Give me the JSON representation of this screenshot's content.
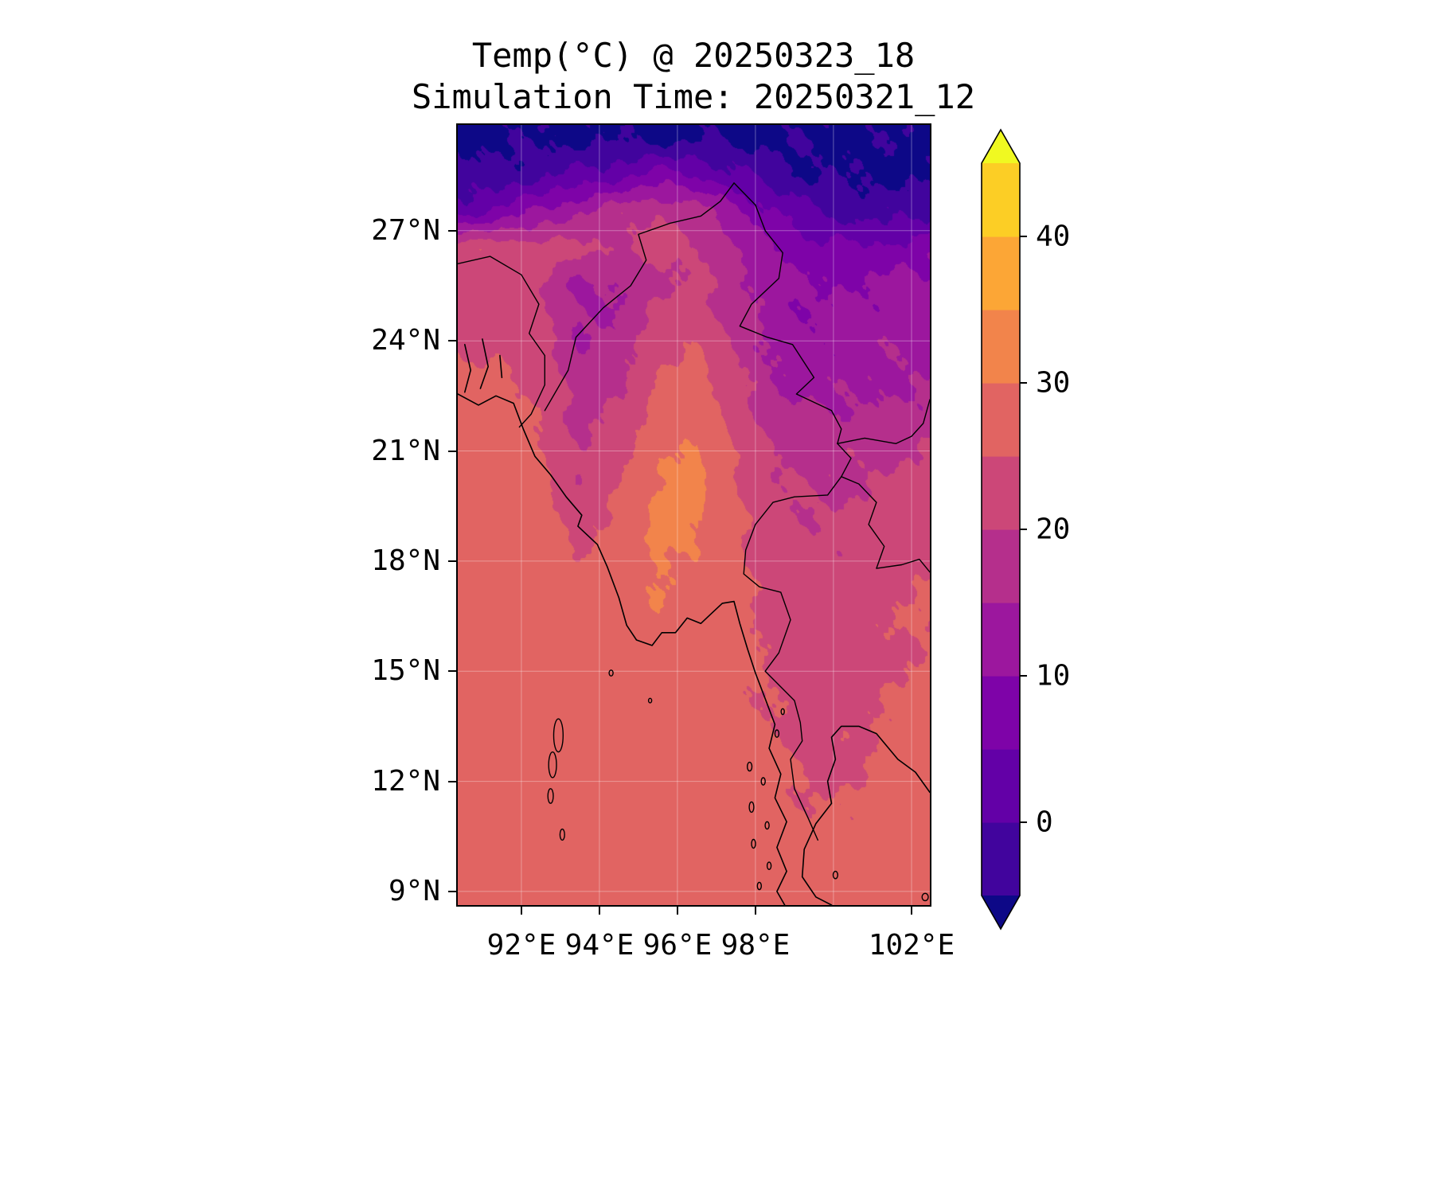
{
  "title": {
    "line1": "Temp(°C) @ 20250323_18",
    "line2": "Simulation Time: 20250321_12"
  },
  "axes": {
    "x_ticks": [
      {
        "lon": 92,
        "label": "92°E"
      },
      {
        "lon": 94,
        "label": "94°E"
      },
      {
        "lon": 96,
        "label": "96°E"
      },
      {
        "lon": 98,
        "label": "98°E"
      },
      {
        "lon": 102,
        "label": "102°E"
      }
    ],
    "y_ticks": [
      {
        "lat": 27,
        "label": "27°N"
      },
      {
        "lat": 24,
        "label": "24°N"
      },
      {
        "lat": 21,
        "label": "21°N"
      },
      {
        "lat": 18,
        "label": "18°N"
      },
      {
        "lat": 15,
        "label": "15°N"
      },
      {
        "lat": 12,
        "label": "12°N"
      },
      {
        "lat": 9,
        "label": "9°N"
      }
    ],
    "gridlines": {
      "lons": [
        92,
        94,
        96,
        98,
        100,
        102
      ],
      "lats": [
        9,
        12,
        15,
        18,
        21,
        24,
        27
      ]
    }
  },
  "colorbar": {
    "ticks": [
      {
        "value": 40,
        "label": "40"
      },
      {
        "value": 30,
        "label": "30"
      },
      {
        "value": 20,
        "label": "20"
      },
      {
        "value": 10,
        "label": "10"
      },
      {
        "value": 0,
        "label": "0"
      }
    ]
  },
  "chart_data": {
    "type": "heatmap",
    "title": "Temp(°C) @ 20250323_18",
    "subtitle": "Simulation Time: 20250321_12",
    "units": "°C",
    "extent": {
      "lon_min": 90.37,
      "lon_max": 102.47,
      "lat_min": 8.63,
      "lat_max": 29.88
    },
    "colormap": {
      "name": "plasma",
      "levels": [
        -5,
        0,
        5,
        10,
        15,
        20,
        25,
        30,
        35,
        40,
        45
      ],
      "colors": [
        "#41049d",
        "#6300a7",
        "#7e03a8",
        "#9c179e",
        "#b52f8c",
        "#cc4778",
        "#e16462",
        "#f2844b",
        "#fca636",
        "#fcce25"
      ],
      "under": "#0d0887",
      "over": "#f0f921"
    },
    "lon": [
      90.5,
      91.5,
      92.5,
      93.5,
      94.5,
      95.5,
      96.5,
      97.5,
      98.5,
      99.5,
      100.5,
      101.5,
      102.5
    ],
    "lat": [
      29.5,
      28.5,
      27.5,
      26.5,
      25.5,
      24.5,
      23.5,
      22.5,
      21.5,
      20.5,
      19.5,
      18.5,
      17.5,
      16.5,
      15.5,
      14.5,
      13.5,
      12.5,
      11.5,
      10.5,
      9.5,
      8.5
    ],
    "values": [
      [
        -6,
        -6,
        -6,
        -6,
        -6,
        -6,
        -6,
        -6,
        -6,
        -6,
        -6,
        -6,
        -6
      ],
      [
        -4,
        -3,
        -1,
        1,
        4,
        7,
        5,
        1,
        -3,
        -5,
        -6,
        -6,
        -6
      ],
      [
        3,
        7,
        11,
        15,
        18,
        20,
        18,
        12,
        5,
        0,
        -2,
        -2,
        -1
      ],
      [
        24,
        24,
        23,
        21,
        20,
        22,
        20,
        15,
        10,
        7,
        6,
        7,
        8
      ],
      [
        23,
        24,
        20,
        14,
        15,
        19,
        21,
        17,
        12,
        10,
        10,
        11,
        12
      ],
      [
        24,
        24,
        22,
        14,
        16,
        22,
        24,
        18,
        13,
        11,
        12,
        13,
        13
      ],
      [
        25,
        25,
        23,
        16,
        18,
        24,
        26,
        20,
        14,
        12,
        13,
        14,
        14
      ],
      [
        26,
        26,
        24,
        18,
        20,
        26,
        28,
        22,
        16,
        14,
        14,
        15,
        15
      ],
      [
        27,
        27,
        25,
        19,
        22,
        28,
        30,
        24,
        19,
        18,
        18,
        19,
        19
      ],
      [
        28,
        28,
        26,
        20,
        24,
        30,
        31,
        25,
        20,
        19,
        19,
        20,
        21
      ],
      [
        28,
        28,
        27,
        22,
        26,
        31,
        31,
        26,
        21,
        20,
        20,
        22,
        23
      ],
      [
        28,
        28,
        28,
        24,
        27,
        31,
        30,
        26,
        22,
        21,
        21,
        23,
        24
      ],
      [
        28,
        28,
        28,
        26,
        28,
        30,
        29,
        26,
        23,
        22,
        22,
        24,
        25
      ],
      [
        28,
        28,
        28,
        28,
        29,
        30,
        28,
        26,
        24,
        23,
        23,
        25,
        26
      ],
      [
        28,
        28,
        28,
        28,
        28,
        29,
        28,
        27,
        24,
        22,
        22,
        24,
        25
      ],
      [
        28,
        28,
        28,
        28,
        28,
        28,
        28,
        26,
        25,
        23,
        23,
        25,
        26
      ],
      [
        28,
        28,
        28,
        28,
        28,
        28,
        28,
        26,
        25,
        24,
        24,
        26,
        27
      ],
      [
        28,
        28,
        28,
        28,
        28,
        28,
        28,
        27,
        26,
        24,
        24,
        26,
        27
      ],
      [
        28,
        28,
        28,
        28,
        28,
        28,
        28,
        27,
        26,
        25,
        25,
        27,
        27
      ],
      [
        28,
        28,
        28,
        28,
        28,
        28,
        28,
        28,
        27,
        26,
        26,
        27,
        28
      ],
      [
        28,
        28,
        28,
        28,
        28,
        28,
        28,
        28,
        27,
        26,
        26,
        27,
        28
      ],
      [
        28,
        28,
        28,
        28,
        28,
        28,
        28,
        28,
        28,
        27,
        27,
        28,
        28
      ]
    ]
  },
  "map_overlays": {
    "coastlines": [
      [
        [
          90.37,
          22.55
        ],
        [
          90.9,
          22.25
        ],
        [
          91.35,
          22.5
        ],
        [
          91.8,
          22.3
        ],
        [
          92.05,
          21.6
        ],
        [
          92.35,
          20.85
        ],
        [
          92.75,
          20.35
        ],
        [
          93.15,
          19.75
        ],
        [
          93.55,
          19.25
        ],
        [
          93.45,
          18.95
        ],
        [
          93.95,
          18.45
        ],
        [
          94.2,
          17.85
        ],
        [
          94.5,
          17.0
        ],
        [
          94.7,
          16.25
        ],
        [
          94.95,
          15.85
        ],
        [
          95.35,
          15.7
        ],
        [
          95.6,
          16.05
        ],
        [
          95.95,
          16.05
        ],
        [
          96.25,
          16.45
        ],
        [
          96.6,
          16.3
        ],
        [
          96.9,
          16.6
        ],
        [
          97.15,
          16.85
        ],
        [
          97.45,
          16.9
        ],
        [
          97.6,
          16.3
        ],
        [
          97.8,
          15.6
        ],
        [
          98.0,
          14.95
        ],
        [
          98.25,
          14.25
        ],
        [
          98.5,
          13.55
        ],
        [
          98.35,
          12.9
        ],
        [
          98.65,
          12.2
        ],
        [
          98.5,
          11.55
        ],
        [
          98.8,
          10.9
        ],
        [
          98.55,
          10.2
        ],
        [
          98.8,
          9.55
        ],
        [
          98.55,
          9.0
        ],
        [
          98.75,
          8.63
        ]
      ],
      [
        [
          102.47,
          11.7
        ],
        [
          102.1,
          12.25
        ],
        [
          101.65,
          12.6
        ],
        [
          101.1,
          13.3
        ],
        [
          100.65,
          13.5
        ],
        [
          100.2,
          13.5
        ],
        [
          99.95,
          13.2
        ],
        [
          100.05,
          12.6
        ],
        [
          99.85,
          12.0
        ],
        [
          99.95,
          11.4
        ],
        [
          99.55,
          10.85
        ],
        [
          99.25,
          10.15
        ],
        [
          99.2,
          9.4
        ],
        [
          99.55,
          8.85
        ],
        [
          99.95,
          8.63
        ]
      ],
      [
        [
          90.55,
          23.9
        ],
        [
          90.7,
          23.2
        ],
        [
          90.55,
          22.6
        ]
      ],
      [
        [
          91.0,
          24.05
        ],
        [
          91.15,
          23.3
        ],
        [
          90.95,
          22.7
        ]
      ],
      [
        [
          91.45,
          23.6
        ],
        [
          91.5,
          23.0
        ]
      ]
    ],
    "borders": [
      [
        [
          90.37,
          26.1
        ],
        [
          91.2,
          26.3
        ],
        [
          92.0,
          25.8
        ],
        [
          92.45,
          25.0
        ],
        [
          92.2,
          24.2
        ],
        [
          92.6,
          23.6
        ],
        [
          92.6,
          22.8
        ],
        [
          92.25,
          22.0
        ],
        [
          91.95,
          21.65
        ]
      ],
      [
        [
          92.6,
          22.1
        ],
        [
          93.2,
          23.2
        ],
        [
          93.4,
          24.1
        ],
        [
          94.1,
          24.9
        ],
        [
          94.8,
          25.5
        ],
        [
          95.2,
          26.2
        ],
        [
          95.0,
          26.9
        ],
        [
          95.8,
          27.2
        ],
        [
          96.6,
          27.4
        ],
        [
          97.1,
          27.8
        ],
        [
          97.45,
          28.3
        ]
      ],
      [
        [
          97.45,
          28.3
        ],
        [
          98.0,
          27.7
        ],
        [
          98.25,
          27.0
        ],
        [
          98.7,
          26.4
        ],
        [
          98.6,
          25.7
        ],
        [
          97.9,
          25.0
        ],
        [
          97.6,
          24.4
        ],
        [
          98.3,
          24.1
        ],
        [
          98.95,
          23.9
        ],
        [
          99.5,
          23.0
        ],
        [
          99.05,
          22.55
        ],
        [
          99.95,
          22.1
        ],
        [
          100.2,
          21.6
        ],
        [
          100.1,
          21.2
        ]
      ],
      [
        [
          100.1,
          21.2
        ],
        [
          100.45,
          20.8
        ],
        [
          100.2,
          20.3
        ],
        [
          100.65,
          20.1
        ],
        [
          101.1,
          19.6
        ],
        [
          100.9,
          19.0
        ],
        [
          101.3,
          18.4
        ],
        [
          101.1,
          17.8
        ],
        [
          101.75,
          17.9
        ],
        [
          102.2,
          18.05
        ],
        [
          102.47,
          17.7
        ]
      ],
      [
        [
          100.1,
          21.2
        ],
        [
          100.8,
          21.35
        ],
        [
          101.6,
          21.2
        ],
        [
          102.0,
          21.4
        ],
        [
          102.3,
          21.75
        ],
        [
          102.47,
          22.4
        ]
      ],
      [
        [
          100.2,
          20.3
        ],
        [
          99.85,
          19.8
        ],
        [
          99.0,
          19.75
        ],
        [
          98.45,
          19.6
        ],
        [
          98.0,
          19.0
        ],
        [
          97.75,
          18.3
        ],
        [
          97.7,
          17.65
        ],
        [
          98.1,
          17.3
        ],
        [
          98.65,
          17.15
        ],
        [
          98.9,
          16.4
        ],
        [
          98.6,
          15.5
        ],
        [
          98.25,
          15.0
        ],
        [
          99.0,
          14.2
        ],
        [
          99.15,
          13.6
        ],
        [
          99.2,
          13.1
        ],
        [
          98.9,
          12.6
        ],
        [
          99.0,
          11.8
        ],
        [
          99.35,
          11.0
        ],
        [
          99.6,
          10.4
        ]
      ]
    ],
    "islands": [
      {
        "c": [
          92.95,
          13.25
        ],
        "r": [
          0.12,
          0.45
        ]
      },
      {
        "c": [
          92.8,
          12.45
        ],
        "r": [
          0.1,
          0.35
        ]
      },
      {
        "c": [
          92.75,
          11.6
        ],
        "r": [
          0.07,
          0.2
        ]
      },
      {
        "c": [
          93.05,
          10.55
        ],
        "r": [
          0.06,
          0.15
        ]
      },
      {
        "c": [
          94.3,
          14.95
        ],
        "r": [
          0.05,
          0.08
        ]
      },
      {
        "c": [
          95.3,
          14.2
        ],
        "r": [
          0.04,
          0.06
        ]
      },
      {
        "c": [
          97.85,
          12.4
        ],
        "r": [
          0.06,
          0.12
        ]
      },
      {
        "c": [
          98.2,
          12.0
        ],
        "r": [
          0.05,
          0.1
        ]
      },
      {
        "c": [
          97.9,
          11.3
        ],
        "r": [
          0.06,
          0.14
        ]
      },
      {
        "c": [
          98.3,
          10.8
        ],
        "r": [
          0.05,
          0.1
        ]
      },
      {
        "c": [
          97.95,
          10.3
        ],
        "r": [
          0.05,
          0.12
        ]
      },
      {
        "c": [
          98.35,
          9.7
        ],
        "r": [
          0.05,
          0.1
        ]
      },
      {
        "c": [
          98.1,
          9.15
        ],
        "r": [
          0.05,
          0.1
        ]
      },
      {
        "c": [
          98.55,
          13.3
        ],
        "r": [
          0.05,
          0.1
        ]
      },
      {
        "c": [
          98.7,
          13.9
        ],
        "r": [
          0.04,
          0.08
        ]
      },
      {
        "c": [
          100.05,
          9.45
        ],
        "r": [
          0.06,
          0.1
        ]
      },
      {
        "c": [
          102.35,
          8.85
        ],
        "r": [
          0.08,
          0.1
        ]
      }
    ]
  }
}
